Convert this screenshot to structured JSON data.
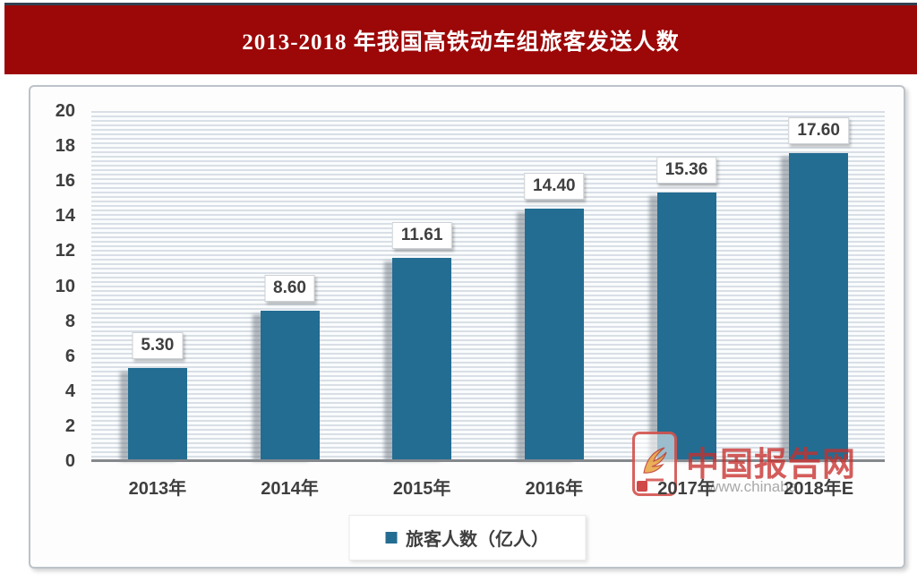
{
  "header": {
    "title": "2013-2018 年我国高铁动车组旅客发送人数",
    "bar_color": "#9c0707",
    "topline_color": "#333f50"
  },
  "chart_data": {
    "type": "bar",
    "title": "2013-2018 年我国高铁动车组旅客发送人数",
    "categories": [
      "2013年",
      "2014年",
      "2015年",
      "2016年",
      "2017年",
      "2018年E"
    ],
    "values": [
      5.3,
      8.6,
      11.61,
      14.4,
      15.36,
      17.6
    ],
    "value_labels": [
      "5.30",
      "8.60",
      "11.61",
      "14.40",
      "15.36",
      "17.60"
    ],
    "series_name": "旅客人数（亿人）",
    "ylim": [
      0,
      20
    ],
    "ytick_step": 2,
    "yticks": [
      0,
      2,
      4,
      6,
      8,
      10,
      12,
      14,
      16,
      18,
      20
    ],
    "grid": "horizontal-stripes",
    "legend_position": "bottom",
    "bar_color": "#236d92",
    "value_label_style": "white-box-above-bar"
  },
  "legend": {
    "label": "旅客人数（亿人）",
    "marker_color": "#236d92"
  },
  "watermark": {
    "brand": "中国报告网",
    "url_fragment": "www.chinaba",
    "logo": "phoenix-logo",
    "brand_color": "#c6302d"
  }
}
